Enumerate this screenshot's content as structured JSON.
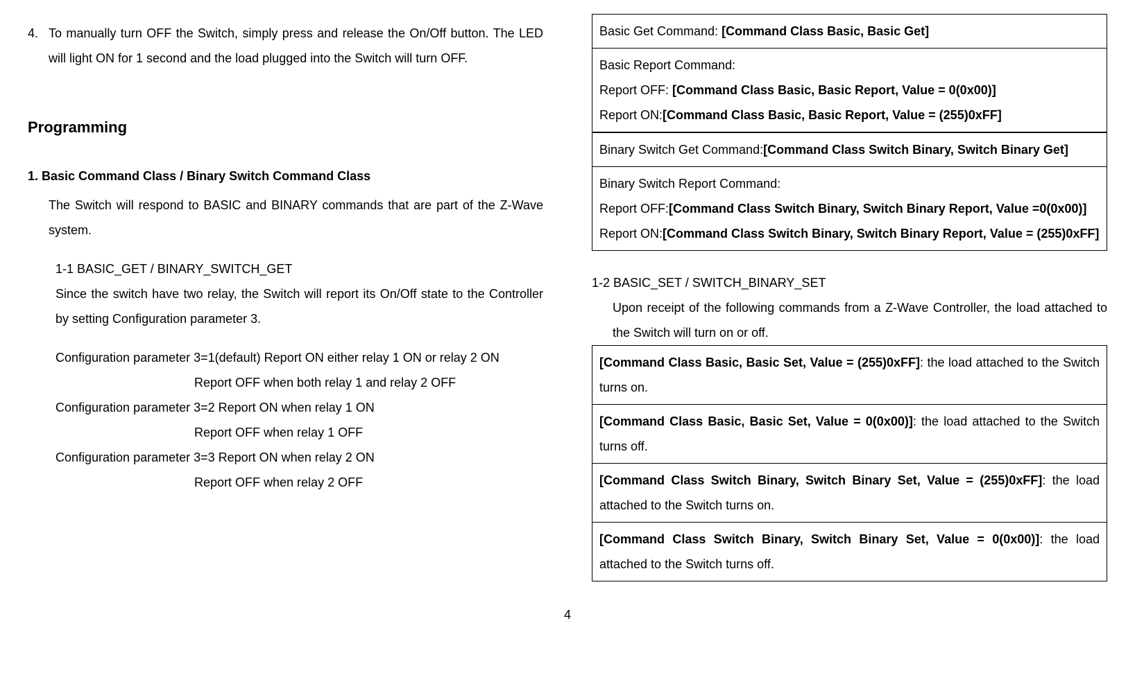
{
  "left": {
    "item4_num": "4.",
    "item4_text": "To manually turn OFF the Switch, simply press and release the On/Off button. The LED will light ON for 1 second and the load plugged into the Switch will turn OFF.",
    "programming_heading": "Programming",
    "section1_heading": "1.  Basic Command Class / Binary Switch Command Class",
    "section1_para": "The Switch will respond to BASIC and BINARY commands that are part of the Z-Wave system.",
    "sub11_heading": "1-1 BASIC_GET / BINARY_SWITCH_GET",
    "sub11_para": "Since the switch have two relay, the Switch will report its On/Off state to the Controller by setting Configuration parameter 3.",
    "config1_line1": "Configuration parameter 3=1(default) Report ON either relay 1 ON or relay 2 ON",
    "config1_line2": "Report OFF when both relay 1 and relay 2 OFF",
    "config2_line1": "Configuration parameter 3=2 Report ON when relay 1 ON",
    "config2_line2": "Report OFF when relay 1 OFF",
    "config3_line1": "Configuration parameter 3=3 Report ON when relay 2 ON",
    "config3_line2": "Report OFF when relay 2 OFF"
  },
  "right": {
    "table1_row1_prefix": "Basic Get Command: ",
    "table1_row1_bold": "[Command Class Basic, Basic Get]",
    "table1_row2_line1": "Basic Report Command:",
    "table1_row2_line2_prefix": "Report OFF: ",
    "table1_row2_line2_bold": "[Command Class Basic, Basic Report, Value = 0(0x00)]",
    "table1_row2_line3_prefix": "Report ON:",
    "table1_row2_line3_bold": "[Command Class Basic, Basic Report, Value = (255)0xFF]",
    "table2_row1_prefix": "Binary Switch Get Command:",
    "table2_row1_bold": "[Command Class Switch Binary, Switch Binary Get]",
    "table2_row2_line1": "Binary Switch Report Command:",
    "table2_row2_line2_prefix": "Report OFF:",
    "table2_row2_line2_bold": "[Command Class Switch Binary, Switch Binary Report, Value =0(0x00)]",
    "table2_row2_line3_prefix": "Report ON:",
    "table2_row2_line3_bold": "[Command Class Switch Binary, Switch Binary Report, Value = (255)0xFF]",
    "sub12_heading": "1-2 BASIC_SET / SWITCH_BINARY_SET",
    "sub12_para": "Upon receipt of the following commands from a Z-Wave Controller, the load attached to the Switch will turn on or off.",
    "table3_row1_bold": "[Command Class Basic, Basic Set, Value = (255)0xFF]",
    "table3_row1_rest": ": the load attached to the Switch turns on.",
    "table3_row2_bold": "[Command Class Basic, Basic Set, Value = 0(0x00)]",
    "table3_row2_rest": ": the load attached to the Switch turns off.",
    "table3_row3_bold": "[Command Class Switch Binary, Switch Binary Set, Value = (255)0xFF]",
    "table3_row3_rest": ": the load attached to the Switch turns on.",
    "table3_row4_bold": "[Command Class Switch Binary, Switch Binary Set, Value = 0(0x00)]",
    "table3_row4_rest": ": the load attached to the Switch turns off."
  },
  "page_number": "4"
}
